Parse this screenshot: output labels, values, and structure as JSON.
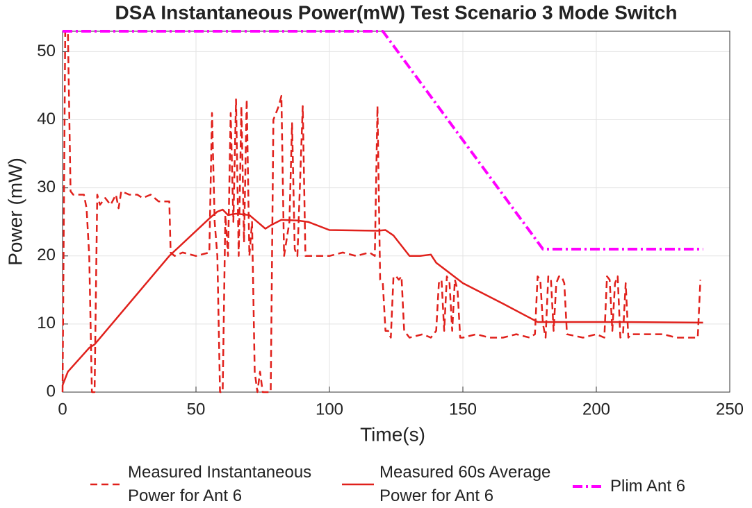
{
  "chart_data": {
    "type": "line",
    "title": "DSA Instantaneous Power(mW) Test Scenario 3 Mode Switch",
    "xlabel": "Time(s)",
    "ylabel": "Power (mW)",
    "xlim": [
      0,
      250
    ],
    "xticks": [
      0,
      50,
      100,
      150,
      200,
      250
    ],
    "ylim": [
      0,
      53
    ],
    "yticks": [
      0,
      10,
      20,
      30,
      40,
      50
    ],
    "grid": true,
    "legend": "bottom",
    "series": [
      {
        "name": "Measured Instantaneous Power for Ant 6",
        "color": "#e0201b",
        "linestyle": "dashed",
        "x": [
          0,
          1,
          2,
          3,
          4,
          8,
          9,
          10,
          11,
          12,
          13,
          14,
          16,
          18,
          20,
          21,
          22,
          25,
          28,
          30,
          33,
          36,
          40,
          40.5,
          42,
          45,
          50,
          55,
          56,
          57,
          58,
          59,
          60,
          61,
          62,
          63,
          64,
          65,
          66,
          67,
          68,
          69,
          70,
          71,
          72,
          73,
          74,
          75,
          76,
          77,
          78,
          79,
          80,
          81,
          82,
          83,
          85,
          86,
          87,
          88,
          90,
          91,
          95,
          100,
          105,
          110,
          115,
          117,
          118,
          119,
          120,
          121,
          122,
          123,
          124,
          125,
          126,
          127,
          128,
          130,
          135,
          138,
          140,
          141,
          142,
          143,
          144,
          145,
          146,
          147,
          148,
          149,
          150,
          155,
          160,
          165,
          170,
          175,
          177,
          178,
          179,
          180,
          181,
          182,
          183,
          184,
          185,
          186,
          187,
          188,
          189,
          195,
          200,
          203,
          204,
          205,
          206,
          207,
          208,
          209,
          210,
          211,
          212,
          213,
          220,
          225,
          230,
          235,
          238,
          239
        ],
        "values": [
          0,
          53,
          53,
          29.5,
          29,
          29,
          27,
          20,
          0,
          0,
          29,
          27.5,
          28.5,
          27.5,
          29,
          27,
          29.5,
          29,
          29,
          28.5,
          29,
          28,
          28,
          20.5,
          20,
          20.5,
          20,
          20.5,
          41,
          25,
          20,
          0,
          0,
          26,
          20,
          41,
          25,
          43,
          20,
          42,
          22,
          43,
          20,
          25,
          3,
          0,
          3,
          0,
          0,
          0,
          0,
          40,
          41,
          42,
          43.5,
          20,
          25,
          39.5,
          21,
          20,
          42,
          20,
          20,
          20,
          20.5,
          20,
          20.5,
          20,
          42,
          16.5,
          16,
          9,
          9,
          8,
          17,
          17,
          16.5,
          17,
          9,
          8,
          8.5,
          8,
          9,
          16,
          16.5,
          9,
          17,
          16,
          9,
          16.5,
          15,
          8,
          8,
          8.5,
          8,
          8,
          8.5,
          8,
          8.5,
          17,
          16.5,
          10,
          8,
          17,
          16.5,
          9,
          16,
          17,
          17,
          16,
          8.5,
          8,
          8.5,
          8,
          17,
          16.5,
          9,
          16,
          17,
          8,
          8.5,
          16,
          8,
          8.5,
          8.5,
          8.5,
          8,
          8,
          8,
          16.5
        ]
      },
      {
        "name": "Measured 60s Average Power for Ant 6",
        "color": "#e0201b",
        "linestyle": "solid",
        "x": [
          0,
          2,
          10,
          12,
          40,
          55,
          58,
          60,
          62,
          65,
          70,
          73,
          76,
          78,
          82,
          88,
          92,
          100,
          118,
          121,
          124,
          130,
          134,
          138,
          140,
          145,
          150,
          165,
          178,
          210,
          240
        ],
        "values": [
          1,
          3,
          6.5,
          7,
          20,
          25.5,
          26.5,
          26.8,
          26,
          26.2,
          26,
          25,
          24,
          24.5,
          25.3,
          25.2,
          25,
          23.8,
          23.7,
          23.8,
          23,
          20,
          20,
          20.2,
          19,
          17.5,
          16,
          13,
          10.3,
          10.3,
          10.2
        ]
      },
      {
        "name": "Plim Ant 6",
        "color": "#ff00ff",
        "linestyle": "dashdot",
        "x": [
          0,
          120,
          180,
          240
        ],
        "values": [
          53,
          53,
          21,
          21
        ]
      }
    ]
  }
}
